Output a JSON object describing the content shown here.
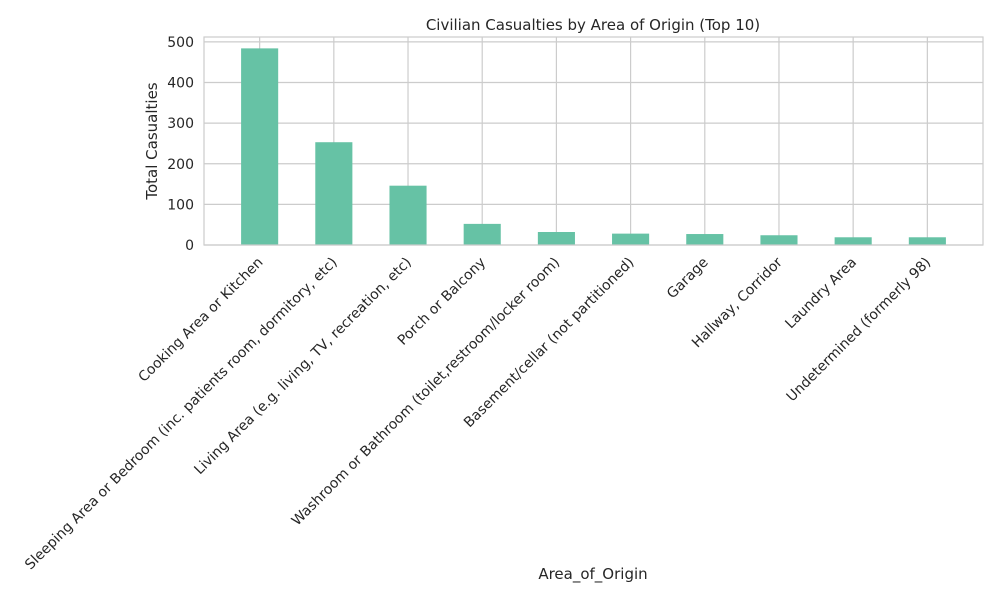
{
  "chart_data": {
    "type": "bar",
    "title": "Civilian Casualties by Area of Origin (Top 10)",
    "xlabel": "Area_of_Origin",
    "ylabel": "Total Casualties",
    "categories": [
      "Cooking Area or Kitchen",
      "Sleeping Area or Bedroom (inc. patients room, dormitory, etc)",
      "Living Area (e.g. living, TV, recreation, etc)",
      "Porch or Balcony",
      "Washroom or Bathroom (toilet,restroom/locker room)",
      "Basement/cellar (not partitioned)",
      "Garage",
      "Hallway, Corridor",
      "Laundry Area",
      "Undetermined  (formerly 98)"
    ],
    "values": [
      484,
      253,
      146,
      52,
      32,
      28,
      27,
      24,
      19,
      19
    ],
    "ylim": [
      0,
      512
    ],
    "yticks": [
      0,
      100,
      200,
      300,
      400,
      500
    ],
    "grid": true,
    "colors": {
      "bar": "#66c2a5",
      "grid": "#cccccc",
      "spine": "#cccccc",
      "text": "#262626"
    }
  }
}
